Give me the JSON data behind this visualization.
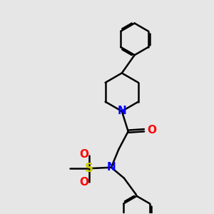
{
  "bg_color": "#e6e6e6",
  "bond_color": "#000000",
  "bond_lw": 1.8,
  "N_color": "#0000ff",
  "O_color": "#ff0000",
  "S_color": "#cccc00",
  "font_size": 11,
  "fig_size": [
    3.0,
    3.0
  ],
  "dpi": 100,
  "xlim": [
    0,
    10
  ],
  "ylim": [
    0,
    10
  ]
}
